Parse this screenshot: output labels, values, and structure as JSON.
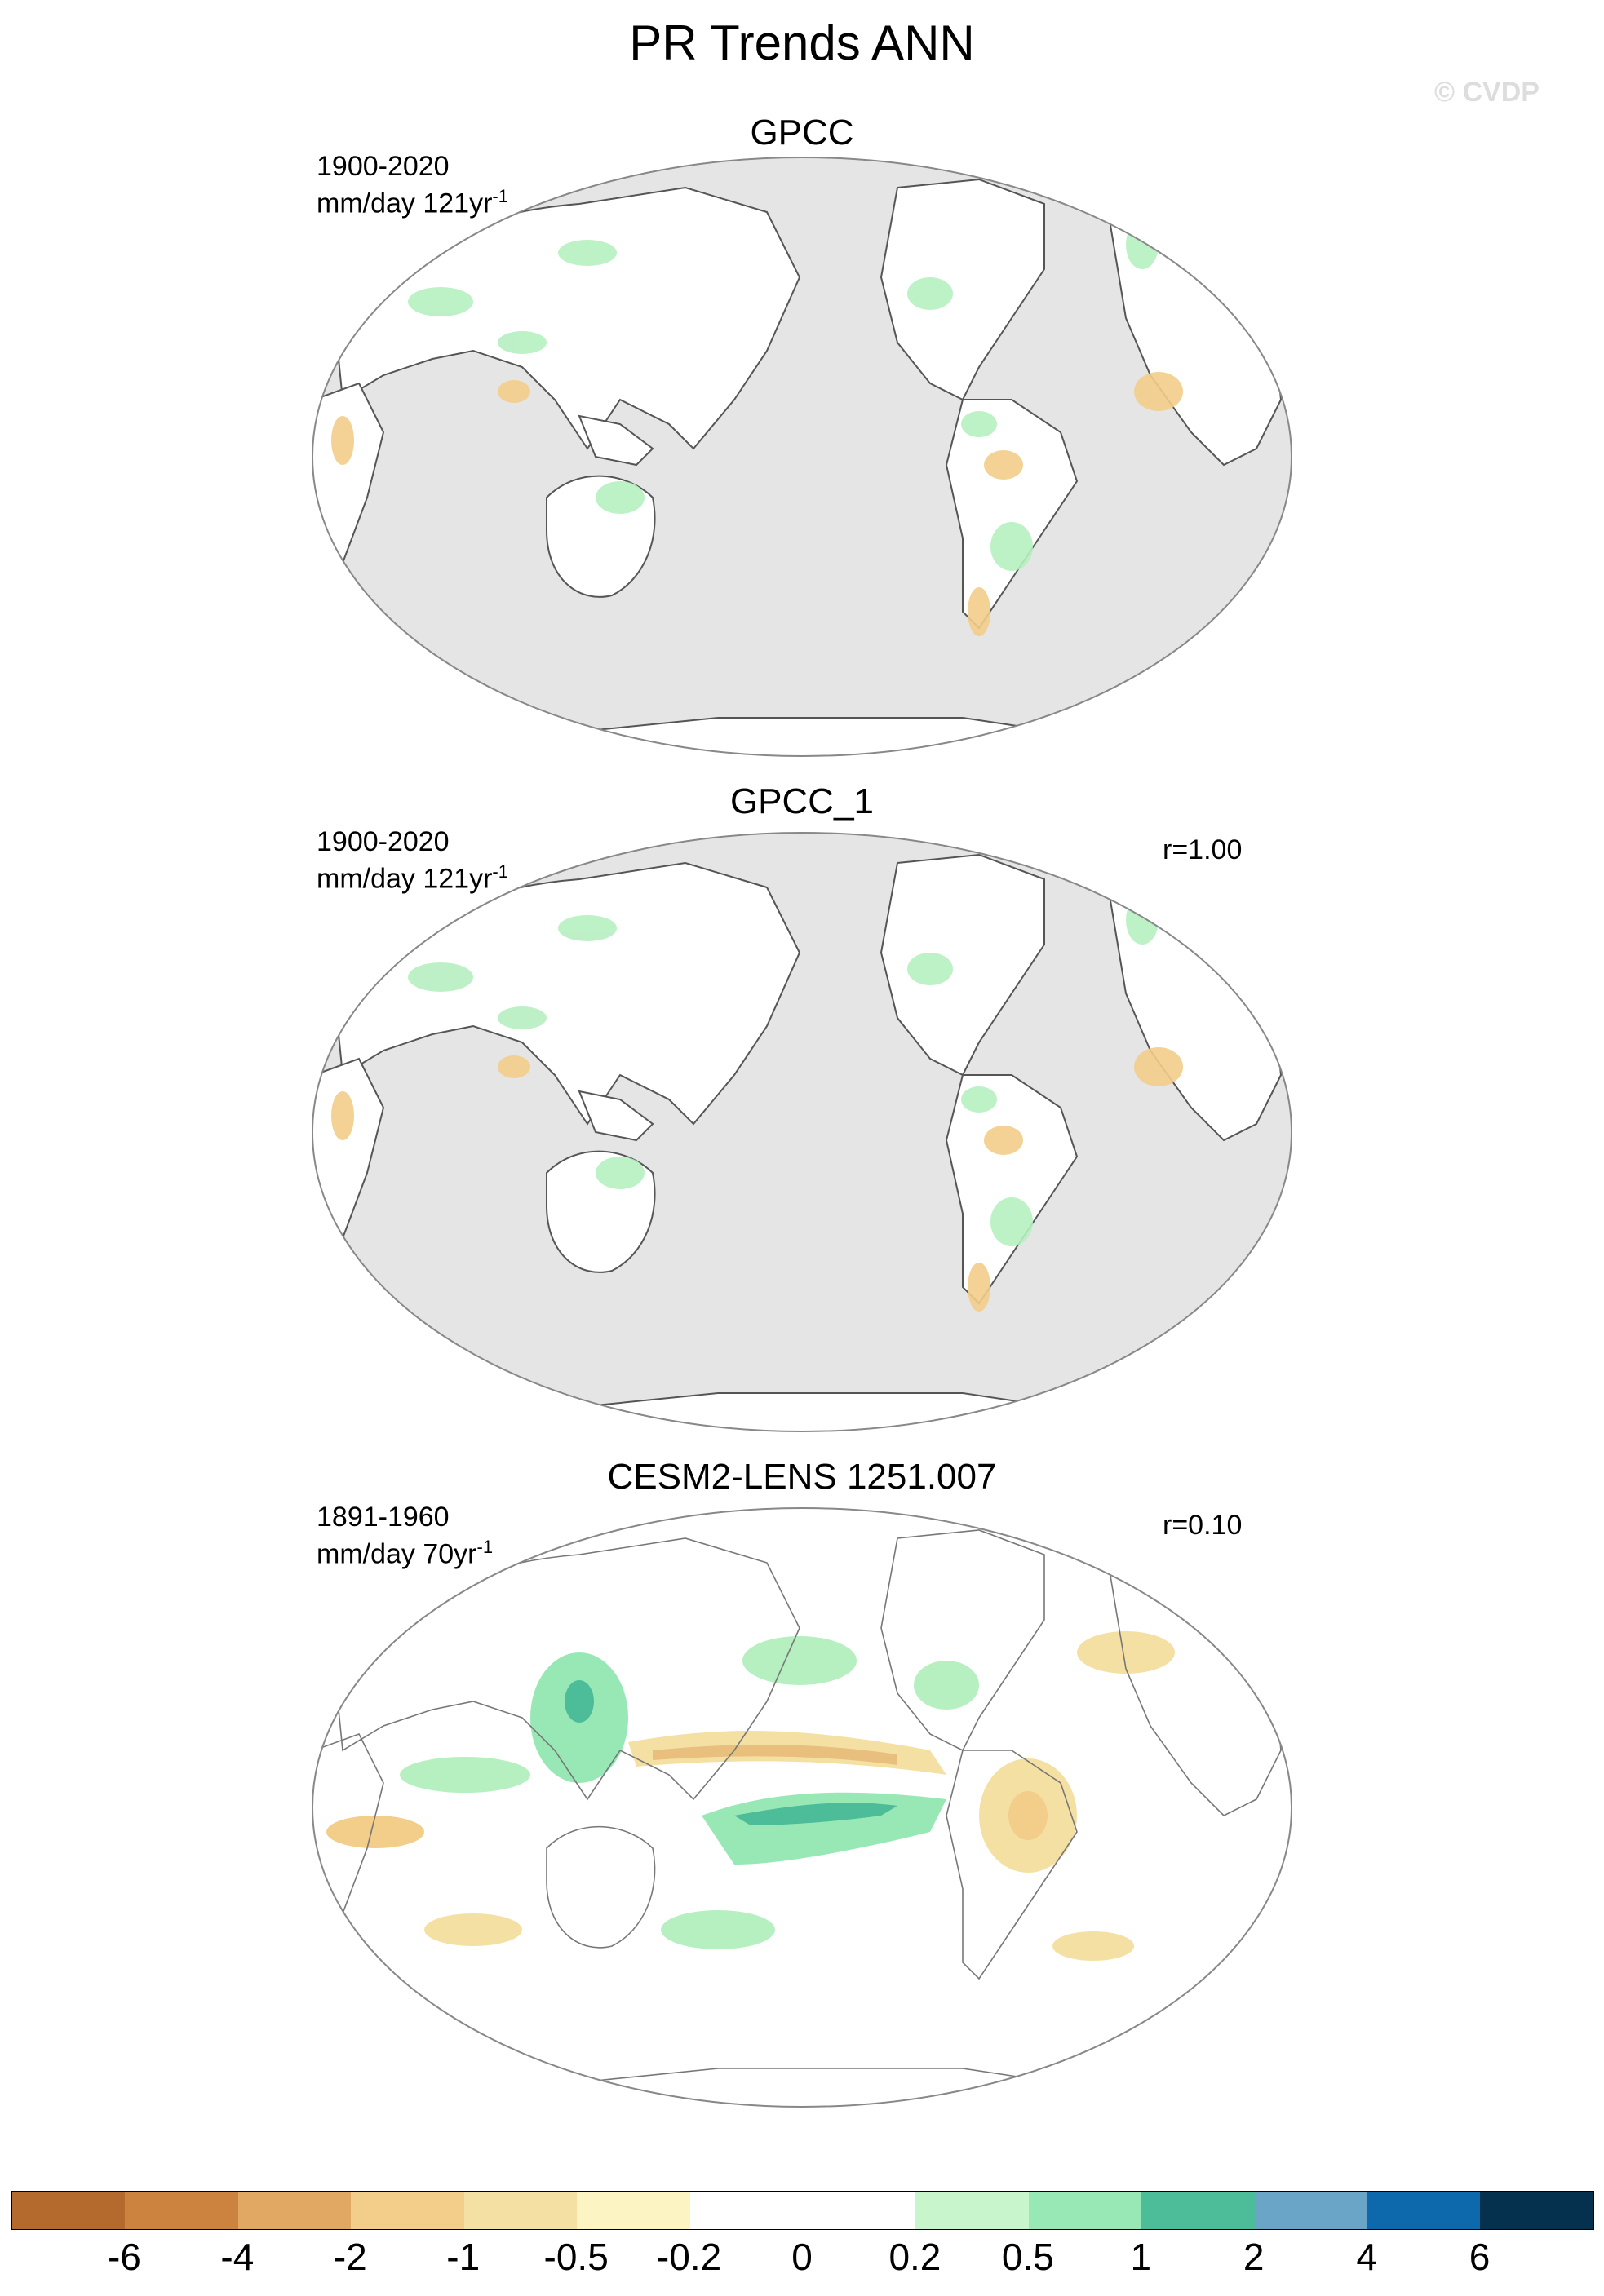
{
  "title": "PR Trends ANN",
  "watermark": "© CVDP",
  "panels": [
    {
      "id": "gpcc",
      "title": "GPCC",
      "period": "1900-2020",
      "units_prefix": "mm/day 121yr",
      "units_sup": "-1",
      "corr": "",
      "land_only": true
    },
    {
      "id": "gpcc1",
      "title": "GPCC_1",
      "period": "1900-2020",
      "units_prefix": "mm/day 121yr",
      "units_sup": "-1",
      "corr": "r=1.00",
      "land_only": true
    },
    {
      "id": "cesm",
      "title": "CESM2-LENS 1251.007",
      "period": "1891-1960",
      "units_prefix": "mm/day 70yr",
      "units_sup": "-1",
      "corr": "r=0.10",
      "land_only": false
    }
  ],
  "colorbar": {
    "colors": [
      "#b4692d",
      "#cd8340",
      "#e0a863",
      "#f3cd8a",
      "#f5e0a4",
      "#fdf4c4",
      "#ffffff",
      "#ffffff",
      "#c8f5cc",
      "#98e8b6",
      "#4dbc98",
      "#6aa4c6",
      "#0e68ac",
      "#05314f"
    ],
    "labels": [
      "-6",
      "-4",
      "-2",
      "-1",
      "-0.5",
      "-0.2",
      "0",
      "0.2",
      "0.5",
      "1",
      "2",
      "4",
      "6"
    ]
  }
}
